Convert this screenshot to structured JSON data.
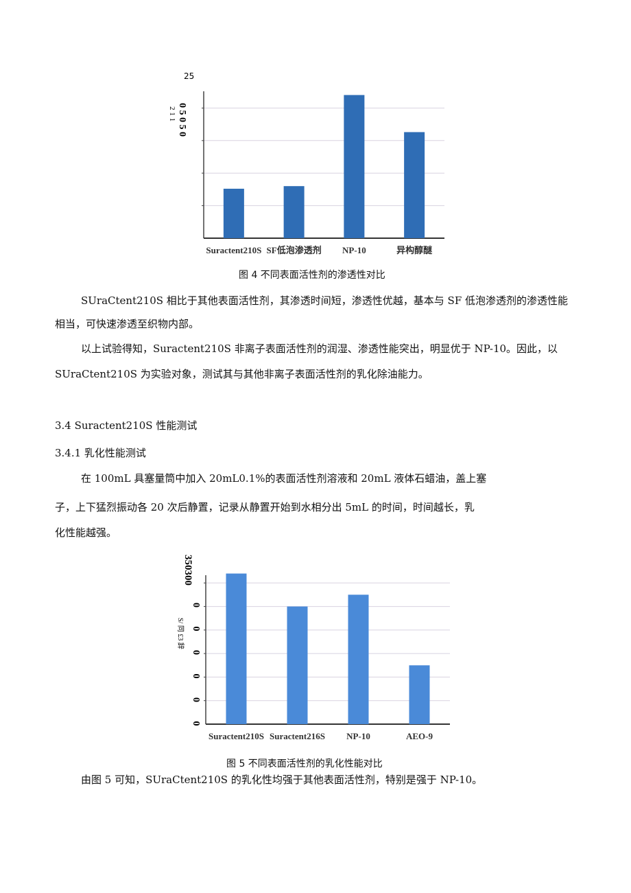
{
  "figure4": {
    "caption": "图 4 不同表面活性剂的渗透性对比",
    "y_top_label": "25",
    "y_tick_text": "0 5 0 5 0",
    "y_label_fragment": "2 1 1"
  },
  "figure5": {
    "caption": "图 5 不同表面活性剂的乳化性能对比",
    "y_top_label": "350300",
    "y_tick_text": "0 0 0 0 0 0",
    "y_label": "S/ 同 £3 辞"
  },
  "paragraphs": [
    "SUraCtent210S 相比于其他表面活性剂，其渗透时间短，渗透性优越，基本与 SF 低泡渗透剂的渗透性能",
    "相当，可快速渗透至织物内部。",
    "以上试验得知，Suractent210S 非离子表面活性剂的润湿、渗透性能突出，明显优于 NP-10。因此，以",
    "SUraCtent210S 为实验对象，测试其与其他非离子表面活性剂的乳化除油能力。",
    "3.4  Suractent210S 性能测试",
    "3.4.1 乳化性能测试",
    "在 100mL 具塞量筒中加入 20mL0.1%的表面活性剂溶液和 20mL 液体石蜡油，盖上塞",
    "子，上下猛烈振动各 20 次后静置，记录从静置开始到水相分出 5mL 的时间，时间越长，乳",
    "化性能越强。",
    "由图 5 可知，SUraCtent210S 的乳化性均强于其他表面活性剂，特别是强于 NP-10。"
  ],
  "chart_data": [
    {
      "type": "bar",
      "categories": [
        "Suractent210S",
        "SF低泡渗透剂",
        "NP-10",
        "异构醇醚"
      ],
      "values": [
        7.6,
        8.0,
        22.0,
        16.3
      ],
      "ylim": [
        0,
        25
      ],
      "grid": true,
      "color": "#2f6db5"
    },
    {
      "type": "bar",
      "categories": [
        "Suractent210S",
        "Suractent216S",
        "NP-10",
        "AEO-9"
      ],
      "values": [
        320,
        250,
        275,
        125
      ],
      "ylim": [
        0,
        350
      ],
      "grid": true,
      "color": "#4a8ad8"
    }
  ]
}
